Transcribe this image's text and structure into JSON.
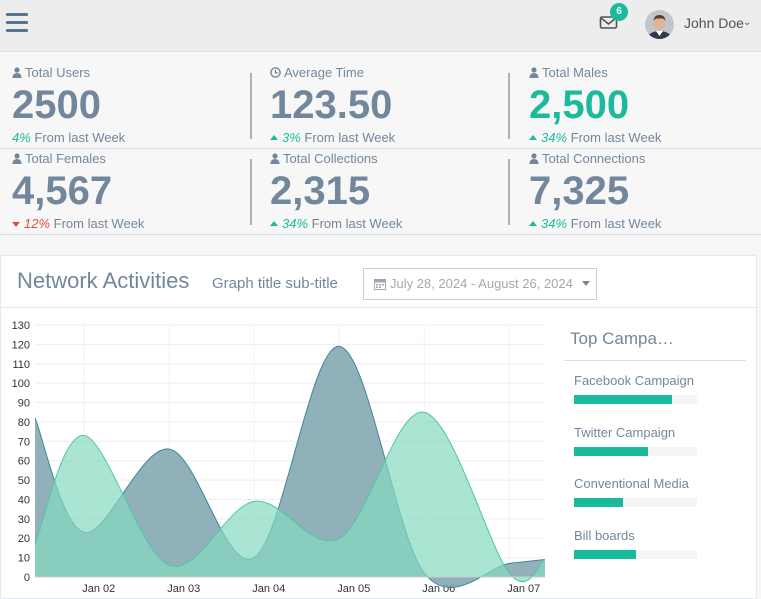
{
  "header": {
    "menu_icon": "hamburger-icon",
    "mail_icon": "envelope-icon",
    "mail_count": "6",
    "user_name": "John Doe",
    "user_chevron": "⌄"
  },
  "tiles": [
    {
      "icon": "user-icon",
      "label": "Total Users",
      "value": "2500",
      "change_arrow": "",
      "change": "4%",
      "suffix": " From last Week",
      "value_color": "#73879C",
      "change_color": "#1ABB9C"
    },
    {
      "icon": "clock-icon",
      "label": "Average Time",
      "value": "123.50",
      "change_arrow": "up",
      "change": "3%",
      "suffix": " From last Week",
      "value_color": "#73879C",
      "change_color": "#1ABB9C"
    },
    {
      "icon": "user-icon",
      "label": "Total Males",
      "value": "2,500",
      "change_arrow": "up",
      "change": "34%",
      "suffix": " From last Week",
      "value_color": "#1ABB9C",
      "change_color": "#1ABB9C"
    },
    {
      "icon": "user-icon",
      "label": "Total Females",
      "value": "4,567",
      "change_arrow": "down",
      "change": "12%",
      "suffix": " From last Week",
      "value_color": "#73879C",
      "change_color": "#E74C3C"
    },
    {
      "icon": "user-icon",
      "label": "Total Collections",
      "value": "2,315",
      "change_arrow": "up",
      "change": "34%",
      "suffix": " From last Week",
      "value_color": "#73879C",
      "change_color": "#1ABB9C"
    },
    {
      "icon": "user-icon",
      "label": "Total Connections",
      "value": "7,325",
      "change_arrow": "up",
      "change": "34%",
      "suffix": " From last Week",
      "value_color": "#73879C",
      "change_color": "#1ABB9C"
    }
  ],
  "panel": {
    "title": "Network Activities",
    "subtitle": "Graph title sub-title",
    "date_range": "July 28, 2024 - August 26, 2024",
    "calendar_icon": "calendar-icon"
  },
  "chart_data": {
    "type": "area",
    "x_ticks": [
      "Jan 02",
      "Jan 03",
      "Jan 04",
      "Jan 05",
      "Jan 06",
      "Jan 07"
    ],
    "ylim": [
      0,
      130
    ],
    "y_ticks": [
      0,
      10,
      20,
      30,
      40,
      50,
      60,
      70,
      80,
      90,
      100,
      110,
      120,
      130
    ],
    "grid": true,
    "series": [
      {
        "color": "#3E8597",
        "fill": "#7EA3AE",
        "x": [
          0.0,
          0.58,
          1.58,
          2.58,
          3.58,
          4.58,
          5.58,
          6.0
        ],
        "y": [
          82,
          23,
          66,
          10,
          119,
          2,
          7,
          9
        ]
      },
      {
        "color": "#4DC8A5",
        "fill": "#86D9C0",
        "x": [
          0.0,
          0.58,
          1.58,
          2.58,
          3.58,
          4.58,
          5.58,
          6.0
        ],
        "y": [
          17,
          73,
          6,
          39,
          20,
          85,
          2,
          9
        ]
      }
    ]
  },
  "campaigns": {
    "title": "Top Campa…",
    "items": [
      {
        "label": "Facebook Campaign",
        "progress": 0.8
      },
      {
        "label": "Twitter Campaign",
        "progress": 0.6
      },
      {
        "label": "Conventional Media",
        "progress": 0.4
      },
      {
        "label": "Bill boards",
        "progress": 0.5
      }
    ]
  }
}
